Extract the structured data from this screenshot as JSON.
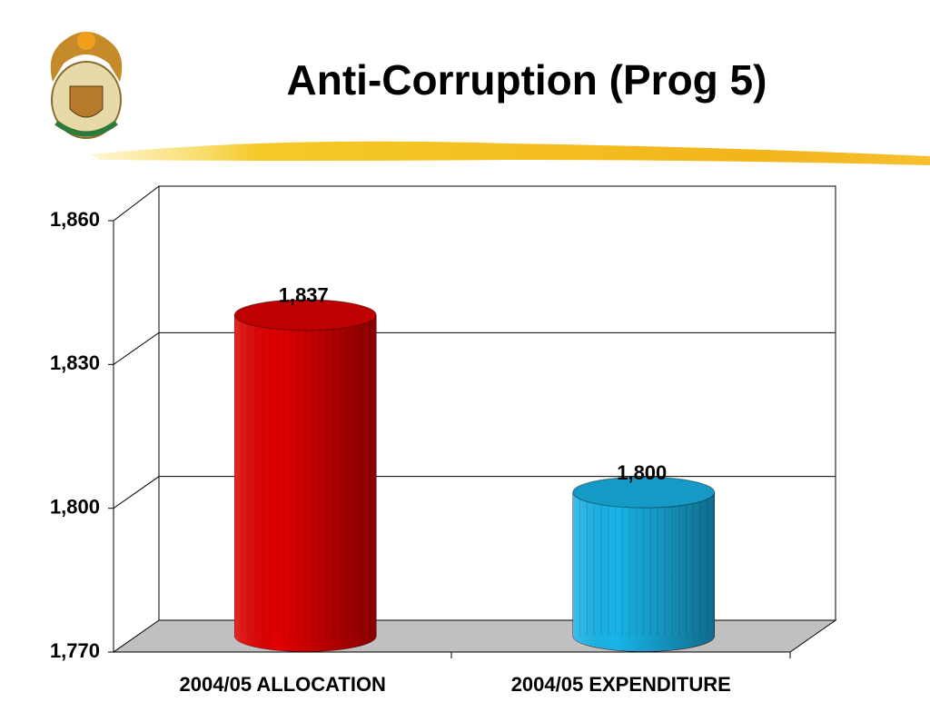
{
  "chart_data": {
    "type": "bar3d",
    "title": "Anti-Corruption (Prog 5)",
    "categories": [
      "2004/05 ALLOCATION",
      "2004/05 EXPENDITURE"
    ],
    "values": [
      1837,
      1800
    ],
    "value_labels": [
      "1,837",
      "1,800"
    ],
    "colors": [
      "#e00000",
      "#19b4e8"
    ],
    "ylim": [
      1770,
      1860
    ],
    "yticks": [
      {
        "value": 1770,
        "label": "1,770"
      },
      {
        "value": 1800,
        "label": "1,800"
      },
      {
        "value": 1830,
        "label": "1,830"
      },
      {
        "value": 1860,
        "label": "1,860"
      }
    ],
    "grid": true
  }
}
